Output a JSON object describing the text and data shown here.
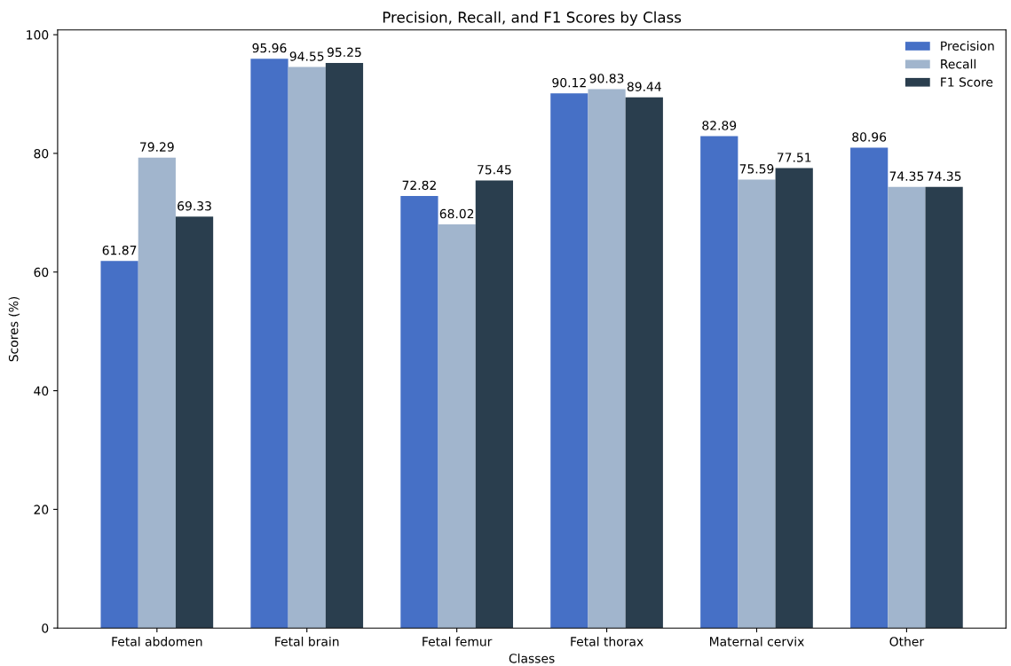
{
  "chart_data": {
    "type": "bar",
    "title": "Precision, Recall, and F1 Scores by Class",
    "xlabel": "Classes",
    "ylabel": "Scores (%)",
    "categories": [
      "Fetal abdomen",
      "Fetal brain",
      "Fetal femur",
      "Fetal thorax",
      "Maternal cervix",
      "Other"
    ],
    "series": [
      {
        "name": "Precision",
        "color": "#4670c6",
        "values": [
          61.87,
          95.96,
          72.82,
          90.12,
          82.89,
          80.96
        ]
      },
      {
        "name": "Recall",
        "color": "#a1b5cd",
        "values": [
          79.29,
          94.55,
          68.02,
          90.83,
          75.59,
          74.35
        ]
      },
      {
        "name": "F1 Score",
        "color": "#2a3e4e",
        "values": [
          69.33,
          95.25,
          75.45,
          89.44,
          77.51,
          74.35
        ]
      }
    ],
    "ylim": [
      0,
      100.8
    ],
    "yticks": [
      0,
      20,
      40,
      60,
      80,
      100
    ],
    "data_labels": true,
    "legend": "top right",
    "grid": false
  }
}
